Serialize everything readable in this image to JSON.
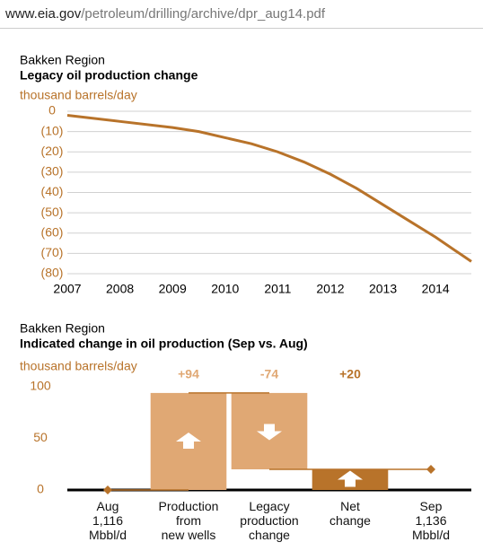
{
  "url_host": "www.eia.gov",
  "url_path": "/petroleum/drilling/archive/dpr_aug14.pdf",
  "chart_data": [
    {
      "type": "line",
      "region": "Bakken Region",
      "title": "Legacy oil production change",
      "unit": "thousand barrels/day",
      "x": [
        2007,
        2008,
        2009,
        2009.5,
        2010,
        2010.5,
        2011,
        2011.5,
        2012,
        2012.5,
        2013,
        2013.5,
        2014,
        2014.68
      ],
      "values": [
        -2,
        -5,
        -8,
        -10,
        -13,
        -16,
        -20,
        -25,
        -31,
        -38,
        -46,
        -54,
        -62,
        -74
      ],
      "color": "#b8732a",
      "xlim": [
        2007,
        2014.68
      ],
      "xticks": [
        2007,
        2008,
        2009,
        2010,
        2011,
        2012,
        2013,
        2014
      ],
      "ylim": [
        -80,
        0
      ],
      "yticks": [
        0,
        {
          "value": -10,
          "label": "(10)"
        },
        {
          "value": -20,
          "label": "(20)"
        },
        {
          "value": -30,
          "label": "(30)"
        },
        {
          "value": -40,
          "label": "(40)"
        },
        {
          "value": -50,
          "label": "(50)"
        },
        {
          "value": -60,
          "label": "(60)"
        },
        {
          "value": -70,
          "label": "(70)"
        },
        {
          "value": -80,
          "label": "(80)"
        }
      ],
      "grid": true
    },
    {
      "type": "waterfall",
      "region": "Bakken Region",
      "title": "Indicated change in oil production (Sep vs. Aug)",
      "unit": "thousand barrels/day",
      "categories": [
        "Aug\n1,116\nMbbl/d",
        "Production\nfrom\nnew wells",
        "Legacy\nproduction\nchange",
        "Net\nchange",
        "Sep\n1,136\nMbbl/d"
      ],
      "values": [
        0,
        94,
        -74,
        20,
        20
      ],
      "value_labels": [
        null,
        "+94",
        "-74",
        "+20",
        null
      ],
      "color": "#e0a874",
      "total_color": "#b8732a",
      "ylim": [
        0,
        100
      ],
      "yticks": [
        0,
        50,
        100
      ]
    }
  ]
}
